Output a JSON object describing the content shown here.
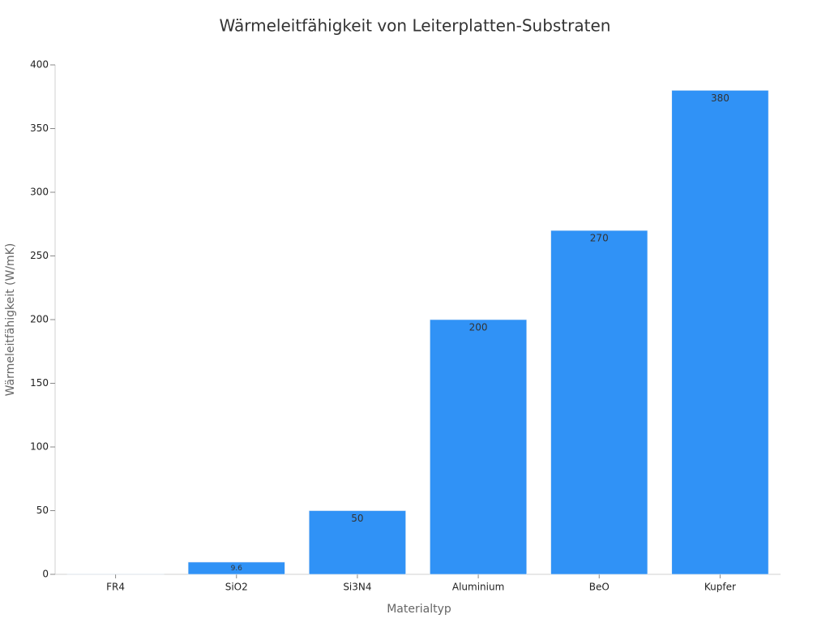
{
  "chart_data": {
    "type": "bar",
    "title": "Wärmeleitfähigkeit von Leiterplatten-Substraten",
    "x_label": "Materialtyp",
    "y_label": "Wärmeleitfähigkeit (W/mK)",
    "categories": [
      "FR4",
      "SiO2",
      "Si3N4",
      "Aluminium",
      "BeO",
      "Kupfer"
    ],
    "values": [
      0.3,
      9.6,
      50,
      200,
      270,
      380
    ],
    "colors": [
      "#cfe0f0",
      "#3092f6",
      "#3092f6",
      "#3092f6",
      "#3092f6",
      "#3092f6"
    ],
    "ylim": [
      0,
      400
    ],
    "yticks": [
      0,
      50,
      100,
      150,
      200,
      250,
      300,
      350,
      400
    ],
    "grid": false
  }
}
